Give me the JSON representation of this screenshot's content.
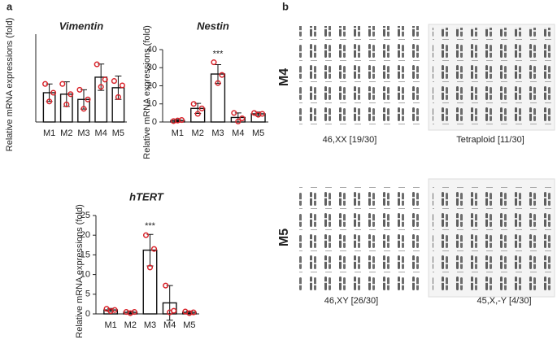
{
  "chart_data": [
    {
      "type": "bar",
      "title": "Vimentin",
      "ylabel": "Relative mRNA expressions (fold)",
      "categories": [
        "M1",
        "M2",
        "M3",
        "M4",
        "M5"
      ],
      "values": [
        1.0,
        0.95,
        0.77,
        1.53,
        1.17
      ],
      "errors": [
        0.3,
        0.42,
        0.33,
        0.45,
        0.4
      ],
      "points": [
        [
          1.3,
          0.7,
          1.0
        ],
        [
          1.3,
          0.6,
          0.95
        ],
        [
          1.1,
          0.45,
          0.77
        ],
        [
          1.97,
          1.2,
          1.45
        ],
        [
          1.4,
          0.85,
          1.25
        ]
      ],
      "color": "#ffffff",
      "point_color": "#d9232a",
      "ylim": [
        0,
        3
      ]
    },
    {
      "type": "bar",
      "title": "Nestin",
      "ylabel": "Relative mRNA expressions (fold)",
      "categories": [
        "M1",
        "M2",
        "M3",
        "M4",
        "M5"
      ],
      "values": [
        0.8,
        7.5,
        26.5,
        2.5,
        4.5
      ],
      "errors": [
        0.5,
        2.8,
        5.2,
        2.5,
        1.0
      ],
      "points": [
        [
          0.5,
          0.8,
          1.1
        ],
        [
          10,
          4.5,
          7.5
        ],
        [
          33,
          21.5,
          26
        ],
        [
          5,
          0.3,
          2
        ],
        [
          5,
          4,
          4.5
        ]
      ],
      "color": "#ffffff",
      "point_color": "#d9232a",
      "ylim": [
        0,
        40
      ],
      "yticks": [
        0,
        10,
        20,
        30,
        40
      ],
      "annotation": "***",
      "annotation_index": 2
    },
    {
      "type": "bar",
      "title": "hTERT",
      "ylabel": "Relative mRNA expressions (fold)",
      "categories": [
        "M1",
        "M2",
        "M3",
        "M4",
        "M5"
      ],
      "values": [
        1.0,
        0.4,
        16.2,
        2.8,
        0.4
      ],
      "errors": [
        0.4,
        0.3,
        4.0,
        4.4,
        0.3
      ],
      "points": [
        [
          1.3,
          0.7,
          1.0
        ],
        [
          0.5,
          0.2,
          0.5
        ],
        [
          20,
          11.8,
          16.5
        ],
        [
          7.2,
          0.4,
          0.8
        ],
        [
          0.6,
          0.2,
          0.4
        ]
      ],
      "color": "#ffffff",
      "point_color": "#d9232a",
      "ylim": [
        0,
        25
      ],
      "yticks": [
        0,
        5,
        10,
        15,
        20,
        25
      ],
      "annotation": "***",
      "annotation_index": 2
    }
  ],
  "panels": {
    "a": "a",
    "b": "b"
  },
  "karyotype": {
    "m4": {
      "label": "M4",
      "left": "46,XX [19/30]",
      "right": "Tetraploid [11/30]"
    },
    "m5": {
      "label": "M5",
      "left": "46,XY [26/30]",
      "right": "45,X,-Y [4/30]"
    }
  }
}
